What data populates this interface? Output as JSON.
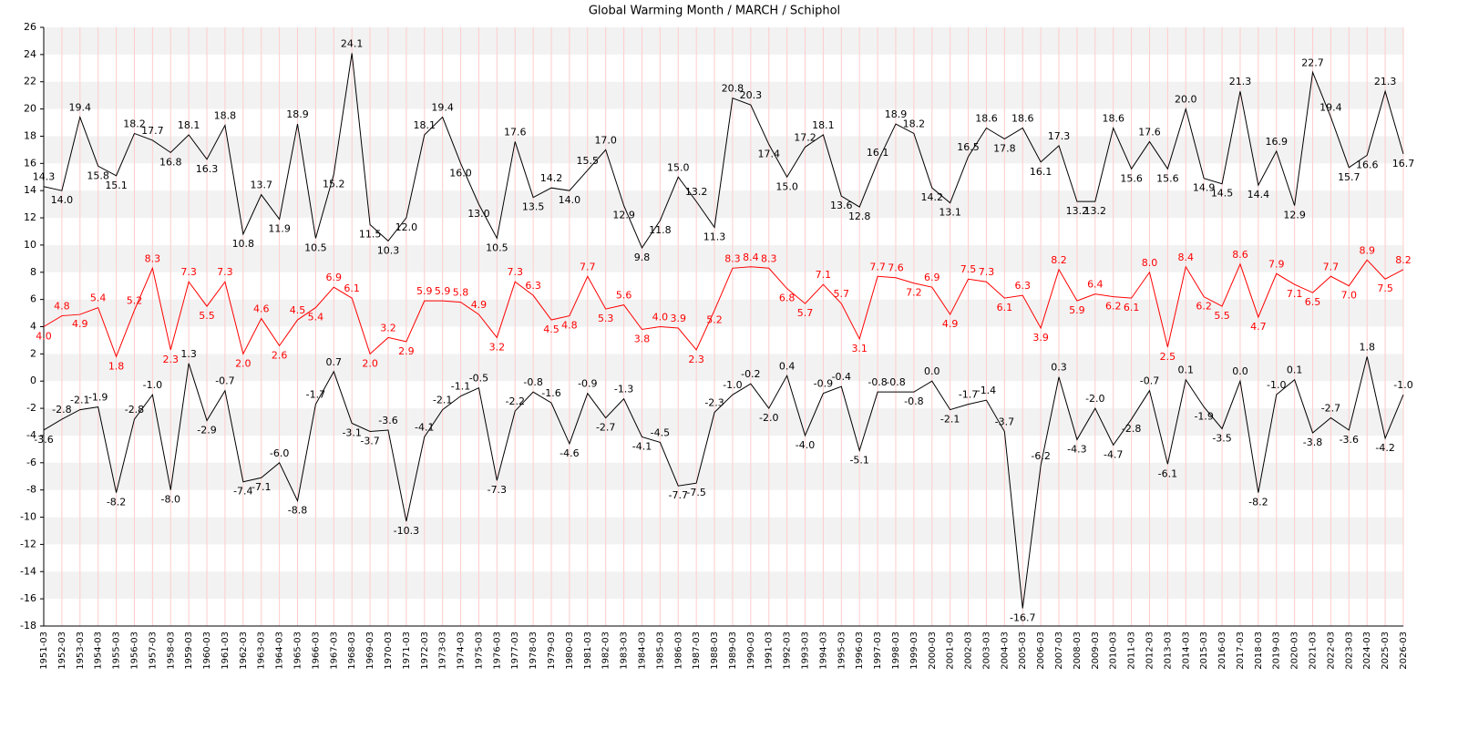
{
  "chart_data": {
    "type": "line",
    "title": "Global Warming Month / MARCH / Schiphol",
    "categories": [
      "1951-03",
      "1952-03",
      "1953-03",
      "1954-03",
      "1955-03",
      "1956-03",
      "1957-03",
      "1958-03",
      "1959-03",
      "1960-03",
      "1961-03",
      "1962-03",
      "1963-03",
      "1964-03",
      "1965-03",
      "1966-03",
      "1967-03",
      "1968-03",
      "1969-03",
      "1970-03",
      "1971-03",
      "1972-03",
      "1973-03",
      "1974-03",
      "1975-03",
      "1976-03",
      "1977-03",
      "1978-03",
      "1979-03",
      "1980-03",
      "1981-03",
      "1982-03",
      "1983-03",
      "1984-03",
      "1985-03",
      "1986-03",
      "1987-03",
      "1988-03",
      "1989-03",
      "1990-03",
      "1991-03",
      "1992-03",
      "1993-03",
      "1994-03",
      "1995-03",
      "1996-03",
      "1997-03",
      "1998-03",
      "1999-03",
      "2000-03",
      "2001-03",
      "2002-03",
      "2003-03",
      "2004-03",
      "2005-03",
      "2006-03",
      "2007-03",
      "2008-03",
      "2009-03",
      "2010-03",
      "2011-03",
      "2012-03",
      "2013-03",
      "2014-03",
      "2015-03",
      "2016-03",
      "2017-03",
      "2018-03",
      "2019-03",
      "2020-03",
      "2021-03",
      "2022-03",
      "2023-03",
      "2024-03",
      "2025-03",
      "2026-03"
    ],
    "series": [
      {
        "color": "#000000",
        "values": [
          14.3,
          14.0,
          19.4,
          15.8,
          15.1,
          18.2,
          17.7,
          16.8,
          18.1,
          16.3,
          18.8,
          10.8,
          13.7,
          11.9,
          18.9,
          10.5,
          15.2,
          24.1,
          11.5,
          10.3,
          12.0,
          18.1,
          19.4,
          16.0,
          13.0,
          10.5,
          17.6,
          13.5,
          14.2,
          14.0,
          15.5,
          17.0,
          12.9,
          9.8,
          11.8,
          15.0,
          13.2,
          11.3,
          20.8,
          20.3,
          17.4,
          15.0,
          17.2,
          18.1,
          13.6,
          12.8,
          16.1,
          18.9,
          18.2,
          14.2,
          13.1,
          16.5,
          18.6,
          17.8,
          18.6,
          16.1,
          17.3,
          13.2,
          13.2,
          18.6,
          15.6,
          17.6,
          15.6,
          20.0,
          14.9,
          14.5,
          21.3,
          14.4,
          16.9,
          12.9,
          22.7,
          19.4,
          15.7,
          16.6,
          21.3,
          16.7
        ],
        "value_labels": [
          "14.3",
          "14.0",
          "19.4",
          "15.8",
          "15.1",
          "18.2",
          "17.7",
          "16.8",
          "18.1",
          "16.3",
          "18.8",
          "10.8",
          "13.7",
          "11.9",
          "18.9",
          "10.5",
          "15.2",
          "24.1",
          "11.5",
          "10.3",
          "12.0",
          "18.1",
          "19.4",
          "16.0",
          "13.0",
          "10.5",
          "17.6",
          "13.5",
          "14.2",
          "14.0",
          "15.5",
          "17.0",
          "12.9",
          "9.8",
          "11.8",
          "15.0",
          "13.2",
          "11.3",
          "20.8",
          "20.3",
          "17.4",
          "15.0",
          "17.2",
          "18.1",
          "13.6",
          "12.8",
          "16.1",
          "18.9",
          "18.2",
          "14.2",
          "13.1",
          "16.5",
          "18.6",
          "17.8",
          "18.6",
          "16.1",
          "17.3",
          "13.2",
          "13.2",
          "18.6",
          "15.6",
          "17.6",
          "15.6",
          "20.0",
          "14.9",
          "14.5",
          "21.3",
          "14.4",
          "16.9",
          "12.9",
          "22.7",
          "19.4",
          "15.7",
          "16.6",
          "21.3",
          "16.7"
        ]
      },
      {
        "color": "#ff0000",
        "values": [
          4.0,
          4.8,
          4.9,
          5.4,
          1.8,
          5.2,
          8.3,
          2.3,
          7.3,
          5.5,
          7.3,
          2.0,
          4.6,
          2.6,
          4.5,
          5.4,
          6.9,
          6.1,
          2.0,
          3.2,
          2.9,
          5.9,
          5.9,
          5.8,
          4.9,
          3.2,
          7.3,
          6.3,
          4.5,
          4.8,
          7.7,
          5.3,
          5.6,
          3.8,
          4.0,
          3.9,
          2.3,
          5.2,
          8.3,
          8.4,
          8.3,
          6.8,
          5.7,
          7.1,
          5.7,
          3.1,
          7.7,
          7.6,
          7.2,
          6.9,
          4.9,
          7.5,
          7.3,
          6.1,
          6.3,
          3.9,
          8.2,
          5.9,
          6.4,
          6.2,
          6.1,
          8.0,
          2.5,
          8.4,
          6.2,
          5.5,
          8.6,
          4.7,
          7.9,
          7.1,
          6.5,
          7.7,
          7.0,
          8.9,
          7.5,
          8.2
        ],
        "value_labels": [
          "4.0",
          "4.8",
          "4.9",
          "5.4",
          "1.8",
          "5.2",
          "8.3",
          "2.3",
          "7.3",
          "5.5",
          "7.3",
          "2.0",
          "4.6",
          "2.6",
          "4.5",
          "5.4",
          "6.9",
          "6.1",
          "2.0",
          "3.2",
          "2.9",
          "5.9",
          "5.9",
          "5.8",
          "4.9",
          "3.2",
          "7.3",
          "6.3",
          "4.5",
          "4.8",
          "7.7",
          "5.3",
          "5.6",
          "3.8",
          "4.0",
          "3.9",
          "2.3",
          "5.2",
          "8.3",
          "8.4",
          "8.3",
          "6.8",
          "5.7",
          "7.1",
          "5.7",
          "3.1",
          "7.7",
          "7.6",
          "7.2",
          "6.9",
          "4.9",
          "7.5",
          "7.3",
          "6.1",
          "6.3",
          "3.9",
          "8.2",
          "5.9",
          "6.4",
          "6.2",
          "6.1",
          "8.0",
          "2.5",
          "8.4",
          "6.2",
          "5.5",
          "8.6",
          "4.7",
          "7.9",
          "7.1",
          "6.5",
          "7.7",
          "7.0",
          "8.9",
          "7.5",
          "8.2"
        ]
      },
      {
        "color": "#000000",
        "values": [
          -3.6,
          -2.8,
          -2.1,
          -1.9,
          -8.2,
          -2.8,
          -1.0,
          -8.0,
          1.3,
          -2.9,
          -0.7,
          -7.4,
          -7.1,
          -6.0,
          -8.8,
          -1.7,
          0.7,
          -3.1,
          -3.7,
          -3.6,
          -10.3,
          -4.1,
          -2.1,
          -1.1,
          -0.5,
          -7.3,
          -2.2,
          -0.8,
          -1.6,
          -4.6,
          -0.9,
          -2.7,
          -1.3,
          -4.1,
          -4.5,
          -7.7,
          -7.5,
          -2.3,
          -1.0,
          -0.2,
          -2.0,
          0.4,
          -4.0,
          -0.9,
          -0.4,
          -5.1,
          -0.8,
          -0.8,
          -0.8,
          0.0,
          -2.1,
          -1.7,
          -1.4,
          -3.7,
          -16.7,
          -6.2,
          0.3,
          -4.3,
          -2.0,
          -4.7,
          -2.8,
          -0.7,
          -6.1,
          0.1,
          -1.9,
          -3.5,
          0.0,
          -8.2,
          -1.0,
          0.1,
          -3.8,
          -2.7,
          -3.6,
          1.8,
          -4.2,
          -1.0
        ],
        "value_labels": [
          "-3.6",
          "-2.8",
          "-2.1",
          "-1.9",
          "-8.2",
          "-2.8",
          "-1.0",
          "-8.0",
          "1.3",
          "-2.9",
          "-0.7",
          "-7.4",
          "-7.1",
          "-6.0",
          "-8.8",
          "-1.7",
          "0.7",
          "-3.1",
          "-3.7",
          "-3.6",
          "-10.3",
          "-4.1",
          "-2.1",
          "-1.1",
          "-0.5",
          "-7.3",
          "-2.2",
          "-0.8",
          "-1.6",
          "-4.6",
          "-0.9",
          "-2.7",
          "-1.3",
          "-4.1",
          "-4.5",
          "-7.7",
          "-7.5",
          "-2.3",
          "-1.0",
          "-0.2",
          "-2.0",
          "0.4",
          "-4.0",
          "-0.9",
          "-0.4",
          "-5.1",
          "-0.8",
          "-0.8",
          "-0.8",
          "0.0",
          "-2.1",
          "-1.7",
          "-1.4",
          "-3.7",
          "-16.7",
          "-6.2",
          "0.3",
          "-4.3",
          "-2.0",
          "-4.7",
          "-2.8",
          "-0.7",
          "-6.1",
          "0.1",
          "-1.9",
          "-3.5",
          "0.0",
          "-8.2",
          "-1.0",
          "0.1",
          "-3.8",
          "-2.7",
          "-3.6",
          "1.8",
          "-4.2",
          "-1.0"
        ]
      }
    ],
    "ylim": [
      -18,
      26
    ],
    "yticks": [
      -18,
      -16,
      -14,
      -12,
      -10,
      -8,
      -6,
      -4,
      -2,
      0,
      2,
      4,
      6,
      8,
      10,
      12,
      14,
      16,
      18,
      20,
      22,
      24,
      26
    ],
    "grid": true
  }
}
